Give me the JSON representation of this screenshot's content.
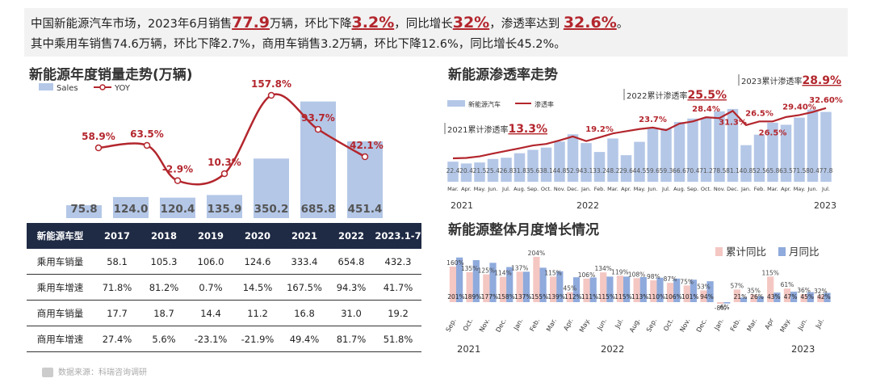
{
  "header": {
    "line1": [
      "中国新能源汽车市场，2023年6月销售",
      "77.9",
      "万辆，环比下降",
      "3.2%",
      "，同比增长",
      "32%",
      "，渗透率达到 ",
      "32.6%",
      "。"
    ],
    "line2": "其中乘用车销售74.6万辆，环比下降2.7%，商用车销售3.2万辆，环比下降12.6%，同比增长45.2%。"
  },
  "colors": {
    "bar": "#b4c7e7",
    "line": "#b3262d",
    "bar_pink": "#f4c7c3",
    "bar_blue": "#8faadc",
    "table_head": "#1f2a44"
  },
  "chart_data": [
    {
      "type": "bar",
      "title": "新能源年度销量走势(万辆)",
      "legend": [
        "Sales",
        "YOY"
      ],
      "legend_position": "top-left",
      "categories": [
        "2017",
        "2018",
        "2019",
        "2020",
        "2021",
        "2022",
        "2023.1-7"
      ],
      "series": [
        {
          "name": "Sales",
          "type": "bar",
          "values": [
            75.8,
            124.0,
            120.4,
            135.9,
            350.2,
            685.8,
            451.4
          ],
          "labels": [
            "75.8",
            "124.0",
            "120.4",
            "135.9",
            "350.2",
            "685.8",
            "451.4"
          ]
        },
        {
          "name": "YOY",
          "type": "line",
          "values": [
            58.9,
            63.5,
            -2.9,
            10.3,
            157.8,
            93.7,
            42.1
          ],
          "labels": [
            "58.9%",
            "63.5%",
            "-2.9%",
            "10.3%",
            "157.8%",
            "93.7%",
            "42.1%"
          ]
        }
      ],
      "ylim": [
        0,
        760
      ],
      "ylim_right": [
        -40,
        170
      ]
    },
    {
      "type": "bar",
      "title": "新能源渗透率走势",
      "legend": [
        "新能源汽车",
        "渗透率"
      ],
      "legend_position": "top-left",
      "categories": [
        "Mar.",
        "Apr.",
        "May.",
        "Jun.",
        "Jul.",
        "Aug.",
        "Sep.",
        "Oct.",
        "Nov.",
        "Dec.",
        "Jan.",
        "Feb.",
        "Mar.",
        "Apr.",
        "May.",
        "Jun.",
        "Jul.",
        "Aug.",
        "Sep.",
        "Oct.",
        "Nov.",
        "Dec.",
        "Jan.",
        "Feb.",
        "Mar.",
        "Apr.",
        "May.",
        "Jun.",
        "Jul."
      ],
      "year_labels": [
        "2021",
        "2022",
        "2023"
      ],
      "series": [
        {
          "name": "新能源汽车",
          "type": "bar",
          "values": [
            22.4,
            20.4,
            21.5,
            25.4,
            26.8,
            31.8,
            35.6,
            38.1,
            44.8,
            52.9,
            43.1,
            33.2,
            48.2,
            29.6,
            44.5,
            59.6,
            59.3,
            66.6,
            70.4,
            71.2,
            78.5,
            81.1,
            40.8,
            52.5,
            65.8,
            63.5,
            71.5,
            80.4,
            77.8
          ],
          "labels": [
            "22.4",
            "20.4",
            "21.5",
            "25.4",
            "26.8",
            "31.8",
            "35.6",
            "38.1",
            "44.8",
            "52.9",
            "43.1",
            "33.2",
            "48.2",
            "29.6",
            "44.5",
            "59.6",
            "59.3",
            "66.6",
            "70.4",
            "71.2",
            "78.5",
            "81.1",
            "40.8",
            "52.5",
            "65.8",
            "63.5",
            "71.5",
            "80.4",
            "77.8"
          ]
        },
        {
          "name": "渗透率",
          "type": "line",
          "values": [
            9.6,
            9.8,
            10.5,
            11.8,
            13.0,
            14.2,
            15.5,
            16.2,
            17.8,
            19.6,
            17.5,
            19.2,
            21.0,
            22.0,
            23.0,
            23.7,
            22.5,
            25.5,
            26.5,
            28.4,
            28.0,
            31.3,
            24.8,
            26.5,
            26.5,
            28.5,
            29.4,
            30.8,
            32.6
          ]
        }
      ],
      "point_labels": [
        {
          "index": 11,
          "text": "19.2%"
        },
        {
          "index": 15,
          "text": "23.7%"
        },
        {
          "index": 19,
          "text": "28.4%"
        },
        {
          "index": 21,
          "text": "31.3%"
        },
        {
          "index": 23,
          "text": "26.5%"
        },
        {
          "index": 24,
          "text": "26.5%"
        },
        {
          "index": 26,
          "text": "29.40%"
        },
        {
          "index": 28,
          "text": "32.60%"
        }
      ],
      "annotations": [
        {
          "text": "2021累计渗透率",
          "value": "13.3%"
        },
        {
          "text": "2022累计渗透率",
          "value": "25.5%"
        },
        {
          "text": "2023累计渗透率",
          "value": "28.9%"
        }
      ],
      "ylim": [
        0,
        90
      ],
      "ylim_right": [
        0,
        34
      ]
    },
    {
      "type": "bar",
      "title": "新能源整体月度增长情况",
      "legend": [
        "累计同比",
        "月同比"
      ],
      "legend_position": "top-right",
      "categories": [
        "Sep.",
        "Oct.",
        "Nov.",
        "Dec.",
        "Jan.",
        "Feb.",
        "Mar.",
        "Apr.",
        "May.",
        "Jun.",
        "Jul.",
        "Aug.",
        "Sep.",
        "Oct.",
        "Nov.",
        "Dec.",
        "Jan.",
        "Feb.",
        "Mar.",
        "Apr",
        "May.",
        "Jun.",
        "Jul."
      ],
      "year_labels": [
        "2021",
        "2022",
        "2023"
      ],
      "series": [
        {
          "name": "累计同比",
          "values": [
            201,
            189,
            177,
            158,
            137,
            155,
            139,
            112,
            111,
            115,
            115,
            113,
            110,
            106,
            101,
            94,
            -6,
            21,
            26,
            43,
            47,
            45,
            42
          ],
          "labels": [
            "201%",
            "189%",
            "177%",
            "158%",
            "137%",
            "155%",
            "139%",
            "112%",
            "111%",
            "115%",
            "115%",
            "113%",
            "110%",
            "106%",
            "101%",
            "94%",
            "-6%",
            "21%",
            "26%",
            "43%",
            "47%",
            "45%",
            "42%"
          ]
        },
        {
          "name": "月同比",
          "values": [
            160,
            135,
            125,
            114,
            137,
            204,
            115,
            45,
            106,
            134,
            119,
            108,
            98,
            87,
            75,
            53,
            -8,
            57,
            35,
            115,
            61,
            36,
            32
          ],
          "labels": [
            "160%",
            "135%",
            "125%",
            "114%",
            "137%",
            "204%",
            "115%",
            "45%",
            "106%",
            "134%",
            "119%",
            "108%",
            "98%",
            "87%",
            "75%",
            "53%",
            "-8%",
            "57%",
            "35%",
            "115%",
            "61%",
            "36%",
            "32%"
          ]
        }
      ],
      "ylim": [
        -20,
        215
      ]
    }
  ],
  "table": {
    "headers": [
      "新能源车型",
      "2017",
      "2018",
      "2019",
      "2020",
      "2021",
      "2022",
      "2023.1-7"
    ],
    "rows": [
      [
        "乘用车销量",
        "58.1",
        "105.3",
        "106.0",
        "124.6",
        "333.4",
        "654.8",
        "432.3"
      ],
      [
        "乘用车增速",
        "71.8%",
        "81.2%",
        "0.7%",
        "14.5%",
        "167.5%",
        "94.3%",
        "41.7%"
      ],
      [
        "商用车销量",
        "17.7",
        "18.7",
        "14.4",
        "11.2",
        "16.8",
        "31.0",
        "19.2"
      ],
      [
        "商用车增速",
        "27.4%",
        "5.6%",
        "-23.1%",
        "-21.9%",
        "49.4%",
        "81.7%",
        "51.8%"
      ]
    ]
  },
  "source": "数据来源：科瑞咨询调研"
}
